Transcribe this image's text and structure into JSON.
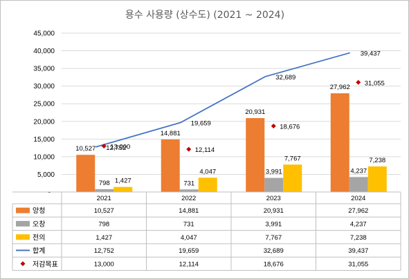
{
  "chart_data": {
    "type": "bar",
    "title": "용수 사용량 (상수도) (2021 ~ 2024)",
    "categories": [
      "2021",
      "2022",
      "2023",
      "2024"
    ],
    "ylim": [
      0,
      45000
    ],
    "yticks": [
      "-",
      "5,000",
      "10,000",
      "15,000",
      "20,000",
      "25,000",
      "30,000",
      "35,000",
      "40,000",
      "45,000"
    ],
    "grid": true,
    "legend": "data-table",
    "series": [
      {
        "name": "양청",
        "kind": "bar",
        "color": "#ED7D31",
        "label_color": "#000000",
        "values": [
          10527,
          14881,
          20931,
          27962
        ],
        "labels": [
          "10,527",
          "14,881",
          "20,931",
          "27,962"
        ]
      },
      {
        "name": "오창",
        "kind": "bar",
        "color": "#A5A5A5",
        "label_color": "#000000",
        "values": [
          798,
          731,
          3991,
          4237
        ],
        "labels": [
          "798",
          "731",
          "3,991",
          "4,237"
        ]
      },
      {
        "name": "전의",
        "kind": "bar",
        "color": "#FFC000",
        "label_color": "#000000",
        "values": [
          1427,
          4047,
          7767,
          7238
        ],
        "labels": [
          "1,427",
          "4,047",
          "7,767",
          "7,238"
        ]
      },
      {
        "name": "합계",
        "kind": "line",
        "color": "#4472C4",
        "label_color": "#2E75B6",
        "values": [
          12752,
          19659,
          32689,
          39437
        ],
        "labels": [
          "12,752",
          "19,659",
          "32,689",
          "39,437"
        ]
      },
      {
        "name": "저감목표",
        "kind": "marker",
        "color": "#C00000",
        "label_color": "#FF0000",
        "values": [
          13000,
          12114,
          18676,
          31055
        ],
        "labels": [
          "13,000",
          "12,114",
          "18,676",
          "31,055"
        ]
      }
    ]
  }
}
